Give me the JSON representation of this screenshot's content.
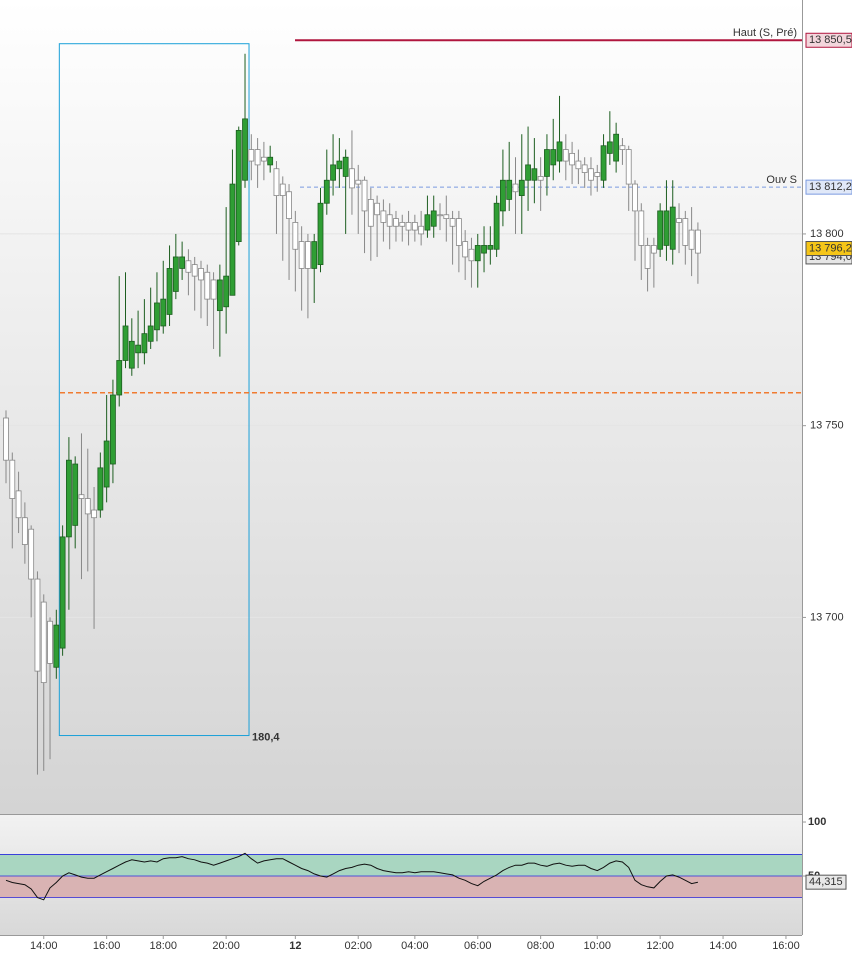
{
  "chart_data": [
    {
      "type": "candlestick",
      "categories": [
        null,
        null,
        null,
        null,
        null,
        null,
        "14:00",
        null,
        null,
        null,
        null,
        null,
        null,
        null,
        null,
        null,
        "16:00",
        null,
        null,
        null,
        null,
        null,
        null,
        null,
        null,
        "18:00",
        null,
        null,
        null,
        null,
        null,
        null,
        null,
        null,
        null,
        "20:00",
        null,
        null,
        null,
        null,
        null,
        null,
        null,
        null,
        null,
        null,
        "12",
        null,
        null,
        null,
        null,
        null,
        null,
        null,
        null,
        null,
        "02:00",
        null,
        null,
        null,
        null,
        null,
        null,
        null,
        null,
        "04:00",
        null,
        null,
        null,
        null,
        null,
        null,
        null,
        null,
        null,
        "06:00",
        null,
        null,
        null,
        null,
        null,
        null,
        null,
        null,
        null,
        "08:00",
        null,
        null,
        null,
        null,
        null,
        null,
        null,
        null,
        "10:00",
        null,
        null,
        null,
        null,
        null,
        null,
        null,
        null,
        null,
        "12:00",
        null,
        null,
        null,
        null,
        null,
        null,
        null,
        null,
        null,
        "14:00",
        null,
        null,
        null,
        null,
        null,
        null,
        null,
        null,
        null,
        "16:00",
        null,
        null
      ],
      "open": [
        13752,
        13741,
        13733,
        13726,
        13723,
        13710,
        13704,
        13699,
        13687,
        13692,
        13721,
        13724,
        13732,
        13731,
        13728,
        13728,
        13734,
        13740,
        13758,
        13767,
        13765,
        13769,
        13769,
        13772,
        13775,
        13776,
        13779,
        13785,
        13791,
        13793,
        13792,
        13791,
        13790,
        13788,
        13780,
        13781,
        13784,
        13798,
        13814,
        13822,
        13822,
        13820,
        13818,
        13817,
        13813,
        13811,
        13803,
        13798,
        13798,
        13791,
        13792,
        13808,
        13814,
        13817,
        13815,
        13817,
        13814,
        13814,
        13809,
        13808,
        13806,
        13805,
        13804,
        13803,
        13803,
        13803,
        13802,
        13801,
        13802,
        13805,
        13805,
        13804,
        13804,
        13798,
        13796,
        13793,
        13795,
        13796,
        13796,
        13806,
        13809,
        13813,
        13810,
        13814,
        13814,
        13815,
        13815,
        13818,
        13819,
        13822,
        13821,
        13819,
        13818,
        13817,
        13816,
        13814,
        13821,
        13819,
        13823,
        13822,
        13813,
        13806,
        13797,
        13797,
        13796,
        13797,
        13796,
        13804,
        13804,
        13801,
        13801,
        null,
        null,
        null,
        null,
        null,
        null,
        null,
        null,
        null,
        null,
        null,
        null,
        null,
        null,
        null,
        null
      ],
      "high": [
        13754,
        13743,
        13738,
        13730,
        13724,
        13712,
        13706,
        13700,
        13702,
        13724,
        13747,
        13742,
        13748,
        13744,
        13734,
        13743,
        13758,
        13762,
        13789,
        13790,
        13778,
        13780,
        13783,
        13786,
        13790,
        13793,
        13797,
        13800,
        13798,
        13796,
        13794,
        13793,
        13792,
        13790,
        13792,
        13807,
        13822,
        13828,
        13847,
        13826,
        13825,
        13824,
        13823,
        13819,
        13815,
        13813,
        13806,
        13802,
        13800,
        13800,
        13812,
        13822,
        13826,
        13825,
        13822,
        13827,
        13818,
        13815,
        13812,
        13810,
        13809,
        13808,
        13806,
        13805,
        13806,
        13805,
        13806,
        13810,
        13810,
        13808,
        13810,
        13806,
        13806,
        13801,
        13799,
        13800,
        13802,
        13802,
        13810,
        13822,
        13824,
        13820,
        13826,
        13828,
        13825,
        13820,
        13826,
        13830,
        13836,
        13826,
        13824,
        13822,
        13820,
        13820,
        13818,
        13826,
        13832,
        13829,
        13825,
        13823,
        13814,
        13808,
        13799,
        13799,
        13808,
        13814,
        13814,
        13808,
        13806,
        13807,
        13803,
        null,
        null,
        null,
        null,
        null,
        null,
        null,
        null,
        null,
        null,
        null,
        null,
        null,
        null,
        null,
        null
      ],
      "low": [
        13735,
        13718,
        13722,
        13714,
        13700,
        13659,
        13660,
        13663,
        13684,
        13690,
        13702,
        13718,
        13710,
        13712,
        13697,
        13726,
        13730,
        13735,
        13755,
        13765,
        13763,
        13765,
        13766,
        13770,
        13772,
        13774,
        13776,
        13783,
        13788,
        13784,
        13780,
        13778,
        13776,
        13770,
        13768,
        13774,
        13784,
        13797,
        13812,
        13814,
        13812,
        13814,
        13816,
        13800,
        13793,
        13788,
        13785,
        13780,
        13778,
        13782,
        13790,
        13805,
        13810,
        13812,
        13800,
        13805,
        13800,
        13795,
        13793,
        13794,
        13798,
        13796,
        13798,
        13798,
        13797,
        13798,
        13797,
        13799,
        13799,
        13801,
        13798,
        13792,
        13790,
        13788,
        13786,
        13786,
        13790,
        13792,
        13794,
        13802,
        13806,
        13800,
        13800,
        13806,
        13808,
        13806,
        13810,
        13814,
        13816,
        13814,
        13813,
        13813,
        13812,
        13810,
        13811,
        13812,
        13818,
        13816,
        13818,
        13806,
        13793,
        13788,
        13785,
        13786,
        13794,
        13793,
        13792,
        13795,
        13792,
        13789,
        13787,
        null,
        null,
        null,
        null,
        null,
        null,
        null,
        null,
        null,
        null,
        null,
        null,
        null,
        null,
        null,
        null
      ],
      "close": [
        13741,
        13731,
        13726,
        13719,
        13710,
        13686,
        13683,
        13688,
        13698,
        13721,
        13741,
        13740,
        13731,
        13727,
        13726,
        13739,
        13746,
        13758,
        13767,
        13776,
        13772,
        13771,
        13774,
        13776,
        13782,
        13783,
        13791,
        13794,
        13794,
        13790,
        13789,
        13788,
        13783,
        13783,
        13788,
        13789,
        13813,
        13827,
        13830,
        13819,
        13818,
        13819,
        13820,
        13810,
        13810,
        13804,
        13796,
        13791,
        13791,
        13798,
        13808,
        13814,
        13818,
        13819,
        13820,
        13812,
        13813,
        13806,
        13802,
        13805,
        13803,
        13802,
        13802,
        13802,
        13801,
        13801,
        13800,
        13805,
        13806,
        13805,
        13804,
        13802,
        13797,
        13794,
        13793,
        13797,
        13797,
        13797,
        13808,
        13814,
        13814,
        13811,
        13814,
        13818,
        13817,
        13814,
        13822,
        13822,
        13824,
        13819,
        13818,
        13817,
        13816,
        13814,
        13815,
        13823,
        13824,
        13826,
        13822,
        13813,
        13806,
        13797,
        13791,
        13795,
        13806,
        13806,
        13807,
        13803,
        13797,
        13796,
        13795,
        null,
        null,
        null,
        null,
        null,
        null,
        null,
        null,
        null,
        null,
        null,
        null,
        null,
        null,
        null,
        null
      ],
      "up_color": "#2f9e34",
      "down_color": "#ffffff",
      "ylim": [
        13649,
        13861
      ],
      "yticks": [
        {
          "value": 13800,
          "label": "13 800"
        },
        {
          "value": 13750,
          "label": "13 750"
        },
        {
          "value": 13700,
          "label": "13 700"
        }
      ],
      "grid": true,
      "levels": [
        {
          "name": "Haut (S, Pré)",
          "value": 13850.5,
          "label": "13 850,5",
          "color": "#b0163e"
        },
        {
          "name": "Ouv S",
          "value": 13812.2,
          "label": "13 812,2",
          "color": "#7b9be0"
        },
        {
          "value": 13758.6,
          "color": "#f07b30"
        }
      ],
      "price_boxes": [
        {
          "value": 13794,
          "label": "13 794,0",
          "color": "#e6e6e6"
        },
        {
          "value": 13796.2,
          "label": "13 796,2",
          "color": "#f5c518"
        }
      ],
      "measure": {
        "high": 13849.6,
        "low": 13669.2,
        "label": "180,4",
        "start": 8,
        "end": 38,
        "color": "#1aa0d8"
      }
    },
    {
      "type": "line",
      "values": [
        46,
        44,
        43,
        42,
        38,
        30,
        28,
        39,
        44,
        50,
        53,
        51,
        49,
        48,
        48,
        51,
        54,
        57,
        60,
        63,
        65,
        64,
        63,
        64,
        63,
        66,
        67,
        67,
        68,
        66,
        65,
        63,
        62,
        60,
        62,
        64,
        66,
        68,
        71,
        66,
        62,
        64,
        65,
        66,
        66,
        63,
        60,
        57,
        55,
        52,
        50,
        49,
        52,
        55,
        57,
        58,
        60,
        61,
        60,
        57,
        55,
        54,
        53,
        53,
        54,
        53,
        54,
        54,
        54,
        53,
        52,
        51,
        48,
        46,
        43,
        41,
        45,
        48,
        51,
        55,
        58,
        60,
        60,
        62,
        62,
        60,
        59,
        61,
        62,
        60,
        59,
        60,
        60,
        57,
        55,
        58,
        62,
        64,
        63,
        58,
        46,
        42,
        40,
        39,
        45,
        50,
        51,
        49,
        46,
        43,
        44.315,
        null,
        null,
        null,
        null,
        null,
        null,
        null,
        null,
        null,
        null,
        null,
        null,
        null,
        null,
        null,
        null
      ],
      "color": "#111111",
      "last_label": "44,315",
      "ylim": [
        -4.6,
        106.5
      ],
      "yticks": [
        100,
        50
      ],
      "upper": 70,
      "mid": 50,
      "lower": 30,
      "upper_color": "#a9d6c1",
      "lower_color": "#d9b3b3",
      "band_line_color": "#2a2ae0"
    }
  ]
}
